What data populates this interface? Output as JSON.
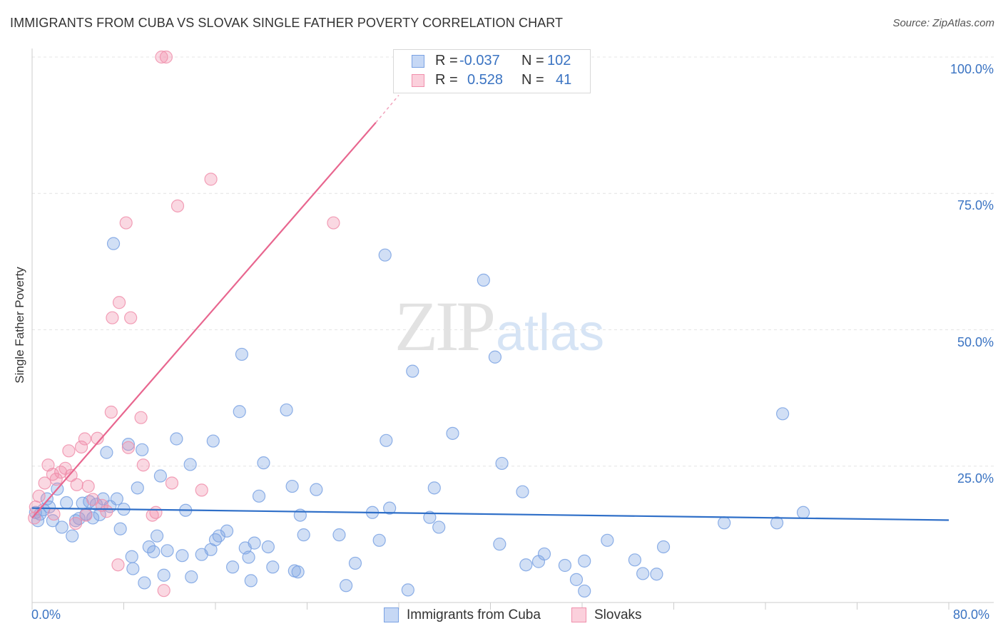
{
  "header": {
    "title": "IMMIGRANTS FROM CUBA VS SLOVAK SINGLE FATHER POVERTY CORRELATION CHART",
    "source": "Source: ZipAtlas.com"
  },
  "watermark": {
    "zip": "ZIP",
    "atlas": "atlas"
  },
  "legend": {
    "r_label": "R =",
    "n_label": "N =",
    "rows": [
      {
        "name": "Immigrants from Cuba",
        "r": "-0.037",
        "n": "102",
        "color": "#7aa2e3"
      },
      {
        "name": "Slovaks",
        "r": "0.528",
        "n": "41",
        "color": "#f08fac"
      }
    ]
  },
  "chart_data": {
    "type": "scatter",
    "title": "IMMIGRANTS FROM CUBA VS SLOVAK SINGLE FATHER POVERTY CORRELATION CHART",
    "xlabel": "",
    "ylabel": "Single Father Poverty",
    "xlim": [
      0,
      80
    ],
    "ylim": [
      0,
      100
    ],
    "x_tick_labels": [
      "0.0%",
      "80.0%"
    ],
    "y_ticks": [
      25,
      50,
      75,
      100
    ],
    "y_tick_labels": [
      "25.0%",
      "50.0%",
      "75.0%",
      "100.0%"
    ],
    "colors": {
      "blue": "#7aa2e3",
      "pink": "#f08fac",
      "blue_line": "#2f6fc8",
      "pink_line": "#e8668f"
    },
    "series": [
      {
        "name": "Immigrants from Cuba",
        "color": "#7aa2e3",
        "trend": {
          "x": [
            0,
            80
          ],
          "y": [
            17.3,
            15.1
          ]
        },
        "points": [
          [
            0.3,
            16.5
          ],
          [
            0.5,
            15
          ],
          [
            0.7,
            16.2
          ],
          [
            1,
            17
          ],
          [
            1.3,
            19
          ],
          [
            1.8,
            15
          ],
          [
            2.2,
            20.8
          ],
          [
            2.6,
            13.8
          ],
          [
            3,
            18.3
          ],
          [
            3.5,
            12.2
          ],
          [
            3.8,
            15
          ],
          [
            4.1,
            15.4
          ],
          [
            4.4,
            18.2
          ],
          [
            4.7,
            16.2
          ],
          [
            5,
            18.5
          ],
          [
            5.3,
            15.5
          ],
          [
            5.6,
            18
          ],
          [
            5.9,
            16.1
          ],
          [
            6.2,
            19
          ],
          [
            6.5,
            27.5
          ],
          [
            6.8,
            17.6
          ],
          [
            7.1,
            65.8
          ],
          [
            7.4,
            19
          ],
          [
            7.7,
            13.5
          ],
          [
            8,
            17.1
          ],
          [
            8.4,
            29
          ],
          [
            8.7,
            8.4
          ],
          [
            8.8,
            6.2
          ],
          [
            9.2,
            21
          ],
          [
            9.6,
            28
          ],
          [
            9.8,
            3.6
          ],
          [
            10.2,
            10.2
          ],
          [
            10.6,
            9.3
          ],
          [
            10.9,
            12.2
          ],
          [
            11.2,
            23.2
          ],
          [
            11.5,
            5
          ],
          [
            11.8,
            9.5
          ],
          [
            12.6,
            30
          ],
          [
            13.1,
            8.6
          ],
          [
            13.4,
            16.9
          ],
          [
            13.8,
            25.3
          ],
          [
            13.9,
            4.7
          ],
          [
            14.8,
            8.8
          ],
          [
            15.6,
            9.7
          ],
          [
            15.8,
            29.6
          ],
          [
            16,
            11.5
          ],
          [
            16.3,
            12.2
          ],
          [
            17,
            13.1
          ],
          [
            17.5,
            6.5
          ],
          [
            18.1,
            35
          ],
          [
            18.3,
            45.5
          ],
          [
            18.6,
            10
          ],
          [
            18.9,
            8.3
          ],
          [
            19.1,
            4
          ],
          [
            19.4,
            10.9
          ],
          [
            19.8,
            19.5
          ],
          [
            20.2,
            25.6
          ],
          [
            20.6,
            10.2
          ],
          [
            21,
            6.5
          ],
          [
            22.2,
            35.3
          ],
          [
            22.7,
            21.3
          ],
          [
            22.9,
            5.8
          ],
          [
            23.2,
            5.6
          ],
          [
            23.4,
            16
          ],
          [
            23.7,
            12.4
          ],
          [
            24.8,
            20.7
          ],
          [
            26.8,
            12.4
          ],
          [
            27.4,
            3.1
          ],
          [
            28.2,
            7.2
          ],
          [
            29.7,
            16.5
          ],
          [
            30.3,
            11.4
          ],
          [
            30.8,
            63.7
          ],
          [
            30.9,
            29.7
          ],
          [
            31.2,
            17.3
          ],
          [
            32.8,
            2.3
          ],
          [
            33.2,
            42.4
          ],
          [
            34.7,
            15.6
          ],
          [
            35.1,
            21
          ],
          [
            35.5,
            13.8
          ],
          [
            36.7,
            31
          ],
          [
            39.4,
            59.1
          ],
          [
            40.4,
            45
          ],
          [
            40.8,
            10.7
          ],
          [
            41,
            25.5
          ],
          [
            42.8,
            20.3
          ],
          [
            43.1,
            6.9
          ],
          [
            44.2,
            7.5
          ],
          [
            44.7,
            8.9
          ],
          [
            46.5,
            6.8
          ],
          [
            47.5,
            4.2
          ],
          [
            48.2,
            7.6
          ],
          [
            48.2,
            2.1
          ],
          [
            50.2,
            11.4
          ],
          [
            52.6,
            7.8
          ],
          [
            53.3,
            5.3
          ],
          [
            54.5,
            5.2
          ],
          [
            55.1,
            10.2
          ],
          [
            60.4,
            14.6
          ],
          [
            65,
            14.6
          ],
          [
            65.5,
            34.6
          ],
          [
            67.3,
            16.5
          ],
          [
            1.5,
            17.5
          ]
        ]
      },
      {
        "name": "Slovaks",
        "color": "#f08fac",
        "trend": {
          "x": [
            0,
            30
          ],
          "y": [
            15.5,
            88
          ]
        },
        "trend_dashed": {
          "x": [
            30,
            32
          ],
          "y": [
            88,
            93
          ]
        },
        "points": [
          [
            0.2,
            15.5
          ],
          [
            0.3,
            17.5
          ],
          [
            0.6,
            19.5
          ],
          [
            1.1,
            21.9
          ],
          [
            1.4,
            25.2
          ],
          [
            1.8,
            23.5
          ],
          [
            2.1,
            22.6
          ],
          [
            2.5,
            23.9
          ],
          [
            2.9,
            24.6
          ],
          [
            3.2,
            27.8
          ],
          [
            3.4,
            23.3
          ],
          [
            3.8,
            14.5
          ],
          [
            3.9,
            21.6
          ],
          [
            4.3,
            28.5
          ],
          [
            4.6,
            30
          ],
          [
            4.9,
            21.3
          ],
          [
            5.3,
            18.9
          ],
          [
            5.7,
            30.1
          ],
          [
            6.1,
            17.8
          ],
          [
            6.9,
            34.9
          ],
          [
            7,
            52.2
          ],
          [
            7.6,
            55
          ],
          [
            7.5,
            6.9
          ],
          [
            8.2,
            69.6
          ],
          [
            8.4,
            28.4
          ],
          [
            8.6,
            52.2
          ],
          [
            9.5,
            33.9
          ],
          [
            9.7,
            25.2
          ],
          [
            10.5,
            16
          ],
          [
            11.5,
            2.2
          ],
          [
            11.3,
            100
          ],
          [
            11.7,
            100
          ],
          [
            12.2,
            21.9
          ],
          [
            12.7,
            72.7
          ],
          [
            14.8,
            20.6
          ],
          [
            15.6,
            77.6
          ],
          [
            26.3,
            69.6
          ],
          [
            4.7,
            16
          ],
          [
            6.5,
            16.7
          ],
          [
            1.9,
            16.2
          ],
          [
            10.8,
            16.5
          ]
        ]
      }
    ]
  }
}
